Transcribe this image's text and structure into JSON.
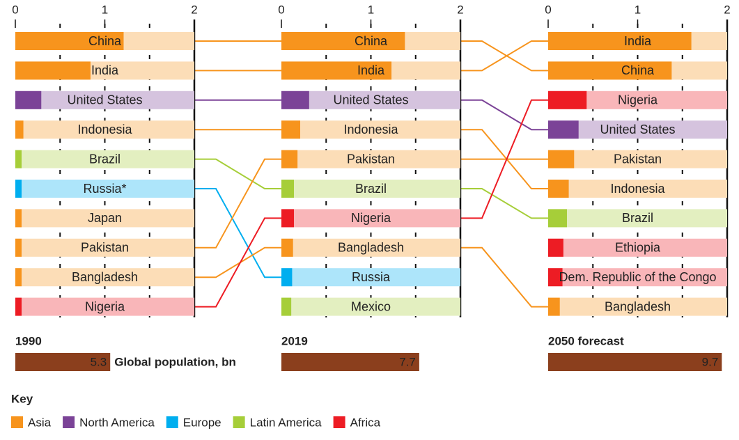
{
  "chart_data": [
    {
      "type": "bar",
      "title": "1990",
      "categories": [
        "China",
        "India",
        "United States",
        "Indonesia",
        "Brazil",
        "Russia*",
        "Japan",
        "Pakistan",
        "Bangladesh",
        "Nigeria"
      ],
      "values": [
        1.21,
        0.84,
        0.29,
        0.09,
        0.07,
        0.07,
        0.07,
        0.07,
        0.07,
        0.07
      ],
      "colors": [
        "#f7941d",
        "#f7941d",
        "#7b4397",
        "#f7941d",
        "#a6ce39",
        "#00aeef",
        "#f7941d",
        "#f7941d",
        "#f7941d",
        "#ed1c24"
      ],
      "xlim": [
        0,
        2
      ],
      "xticks": [
        0,
        1,
        2
      ],
      "xgrid": [
        0.5,
        1,
        1.5
      ],
      "global_population": 5.3
    },
    {
      "type": "bar",
      "title": "2019",
      "categories": [
        "China",
        "India",
        "United States",
        "Indonesia",
        "Pakistan",
        "Brazil",
        "Nigeria",
        "Bangladesh",
        "Russia",
        "Mexico"
      ],
      "values": [
        1.38,
        1.23,
        0.31,
        0.21,
        0.18,
        0.14,
        0.14,
        0.13,
        0.12,
        0.11
      ],
      "colors": [
        "#f7941d",
        "#f7941d",
        "#7b4397",
        "#f7941d",
        "#f7941d",
        "#a6ce39",
        "#ed1c24",
        "#f7941d",
        "#00aeef",
        "#a6ce39"
      ],
      "xlim": [
        0,
        2
      ],
      "xticks": [
        0,
        1,
        2
      ],
      "xgrid": [
        0.5,
        1,
        1.5
      ],
      "global_population": 7.7
    },
    {
      "type": "bar",
      "title": "2050 forecast",
      "categories": [
        "India",
        "China",
        "Nigeria",
        "United States",
        "Pakistan",
        "Indonesia",
        "Brazil",
        "Ethiopia",
        "Dem. Republic of the Congo",
        "Bangladesh"
      ],
      "values": [
        1.6,
        1.38,
        0.43,
        0.34,
        0.29,
        0.23,
        0.21,
        0.17,
        0.16,
        0.13
      ],
      "colors": [
        "#f7941d",
        "#f7941d",
        "#ed1c24",
        "#7b4397",
        "#f7941d",
        "#f7941d",
        "#a6ce39",
        "#ed1c24",
        "#ed1c24",
        "#f7941d"
      ],
      "xlim": [
        0,
        2
      ],
      "xticks": [
        0,
        1,
        2
      ],
      "xgrid": [
        0.5,
        1,
        1.5
      ],
      "global_population": 9.7
    }
  ],
  "global_population": {
    "label": "Global population, bn",
    "xlim": [
      0,
      10
    ],
    "color": "#8b3f1d"
  },
  "key": {
    "title": "Key",
    "items": [
      {
        "name": "Asia",
        "color": "#f7941d"
      },
      {
        "name": "North America",
        "color": "#7b4397"
      },
      {
        "name": "Europe",
        "color": "#00aeef"
      },
      {
        "name": "Latin America",
        "color": "#a6ce39"
      },
      {
        "name": "Africa",
        "color": "#ed1c24"
      }
    ]
  }
}
